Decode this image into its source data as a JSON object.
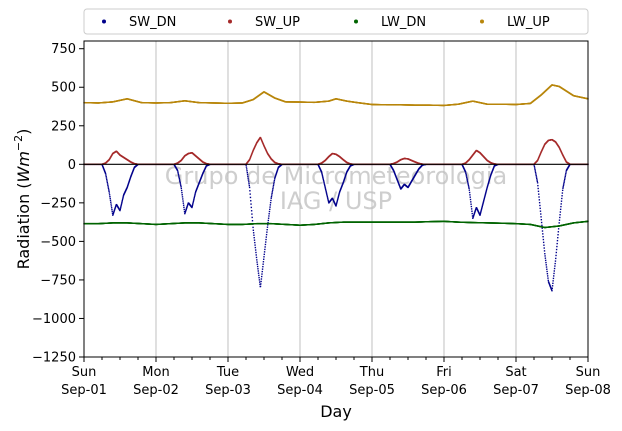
{
  "chart_data": {
    "type": "scatter",
    "title": "",
    "xlabel": "Day",
    "ylabel": "Radiation (Wm⁻²)",
    "ylabel_parts": {
      "prefix": "Radiation (",
      "math": "Wm",
      "sup": "−2",
      "suffix": ")"
    },
    "xlim": [
      0,
      7
    ],
    "ylim": [
      -1250,
      800
    ],
    "yticks": [
      -1250,
      -1000,
      -750,
      -500,
      -250,
      0,
      250,
      500,
      750
    ],
    "ytick_labels": [
      "−1250",
      "−1000",
      "−750",
      "−500",
      "−250",
      "0",
      "250",
      "500",
      "750"
    ],
    "xticks_major": [
      {
        "x": 0,
        "day": "Sun",
        "date": "Sep-01"
      },
      {
        "x": 1,
        "day": "Mon",
        "date": "Sep-02"
      },
      {
        "x": 2,
        "day": "Tue",
        "date": "Sep-03"
      },
      {
        "x": 3,
        "day": "Wed",
        "date": "Sep-04"
      },
      {
        "x": 4,
        "day": "Thu",
        "date": "Sep-05"
      },
      {
        "x": 5,
        "day": "Fri",
        "date": "Sep-06"
      },
      {
        "x": 6,
        "day": "Sat",
        "date": "Sep-07"
      },
      {
        "x": 7,
        "day": "Sun",
        "date": "Sep-08"
      }
    ],
    "grid": "vertical",
    "zero_line": 0,
    "legend": {
      "placement": "top, above plot",
      "columns": 4
    },
    "watermark": [
      "Grupo de Micrometeorologia",
      "IAG / USP"
    ],
    "series": [
      {
        "name": "SW_DN",
        "color": "#00008b",
        "x": [
          0,
          0.25,
          0.3,
          0.35,
          0.4,
          0.45,
          0.5,
          0.55,
          0.6,
          0.65,
          0.7,
          0.75,
          1,
          1.25,
          1.3,
          1.35,
          1.4,
          1.45,
          1.5,
          1.55,
          1.6,
          1.65,
          1.7,
          1.75,
          2,
          2.25,
          2.3,
          2.35,
          2.4,
          2.45,
          2.5,
          2.55,
          2.6,
          2.65,
          2.7,
          2.75,
          3,
          3.25,
          3.3,
          3.35,
          3.4,
          3.45,
          3.5,
          3.55,
          3.6,
          3.65,
          3.7,
          3.75,
          4,
          4.25,
          4.3,
          4.35,
          4.4,
          4.45,
          4.5,
          4.55,
          4.6,
          4.65,
          4.7,
          4.75,
          5,
          5.25,
          5.3,
          5.35,
          5.4,
          5.45,
          5.5,
          5.55,
          5.6,
          5.65,
          5.7,
          5.75,
          6,
          6.25,
          6.3,
          6.35,
          6.4,
          6.45,
          6.5,
          6.55,
          6.6,
          6.65,
          6.7,
          6.75,
          7
        ],
        "y": [
          0,
          0,
          -60,
          -180,
          -330,
          -260,
          -300,
          -200,
          -150,
          -80,
          -20,
          0,
          0,
          0,
          -40,
          -150,
          -320,
          -250,
          -280,
          -180,
          -120,
          -60,
          -10,
          0,
          0,
          0,
          -150,
          -420,
          -620,
          -800,
          -600,
          -400,
          -220,
          -90,
          -20,
          0,
          0,
          0,
          -50,
          -150,
          -250,
          -220,
          -270,
          -180,
          -120,
          -50,
          -10,
          0,
          0,
          0,
          -40,
          -100,
          -160,
          -130,
          -150,
          -110,
          -70,
          -30,
          -5,
          0,
          0,
          0,
          -50,
          -160,
          -350,
          -280,
          -330,
          -240,
          -150,
          -70,
          -10,
          0,
          0,
          0,
          -120,
          -350,
          -580,
          -760,
          -820,
          -620,
          -380,
          -160,
          -40,
          0,
          0
        ]
      },
      {
        "name": "SW_UP",
        "color": "#a52a2a",
        "x": [
          0,
          0.25,
          0.3,
          0.35,
          0.4,
          0.45,
          0.5,
          0.55,
          0.6,
          0.65,
          0.7,
          0.75,
          1,
          1.25,
          1.3,
          1.35,
          1.4,
          1.45,
          1.5,
          1.55,
          1.6,
          1.65,
          1.7,
          1.75,
          2,
          2.25,
          2.3,
          2.35,
          2.4,
          2.45,
          2.5,
          2.55,
          2.6,
          2.65,
          2.7,
          2.75,
          3,
          3.25,
          3.3,
          3.35,
          3.4,
          3.45,
          3.5,
          3.55,
          3.6,
          3.65,
          3.7,
          3.75,
          4,
          4.25,
          4.3,
          4.35,
          4.4,
          4.45,
          4.5,
          4.55,
          4.6,
          4.65,
          4.7,
          4.75,
          5,
          5.25,
          5.3,
          5.35,
          5.4,
          5.45,
          5.5,
          5.55,
          5.6,
          5.65,
          5.7,
          5.75,
          6,
          6.25,
          6.3,
          6.35,
          6.4,
          6.45,
          6.5,
          6.55,
          6.6,
          6.65,
          6.7,
          6.75,
          7
        ],
        "y": [
          0,
          0,
          8,
          30,
          70,
          85,
          60,
          45,
          30,
          15,
          4,
          0,
          0,
          0,
          8,
          25,
          55,
          70,
          75,
          55,
          35,
          15,
          4,
          0,
          0,
          0,
          30,
          90,
          140,
          175,
          120,
          70,
          35,
          12,
          3,
          0,
          0,
          0,
          8,
          25,
          50,
          70,
          65,
          50,
          30,
          12,
          2,
          0,
          0,
          0,
          5,
          15,
          30,
          38,
          35,
          25,
          15,
          6,
          1,
          0,
          0,
          0,
          8,
          30,
          60,
          90,
          75,
          50,
          25,
          10,
          2,
          0,
          0,
          0,
          25,
          80,
          130,
          155,
          160,
          145,
          110,
          60,
          15,
          0,
          0
        ]
      },
      {
        "name": "LW_DN",
        "color": "#006400",
        "x": [
          0,
          0.2,
          0.4,
          0.6,
          0.8,
          1,
          1.2,
          1.4,
          1.6,
          1.8,
          2,
          2.2,
          2.4,
          2.6,
          2.8,
          3,
          3.2,
          3.4,
          3.6,
          3.8,
          4,
          4.2,
          4.4,
          4.6,
          4.8,
          5,
          5.2,
          5.4,
          5.6,
          5.8,
          6,
          6.2,
          6.4,
          6.6,
          6.8,
          7
        ],
        "y": [
          -385,
          -385,
          -380,
          -380,
          -385,
          -390,
          -385,
          -380,
          -380,
          -385,
          -390,
          -390,
          -385,
          -385,
          -390,
          -395,
          -390,
          -380,
          -375,
          -375,
          -375,
          -375,
          -375,
          -375,
          -372,
          -370,
          -375,
          -378,
          -380,
          -382,
          -385,
          -390,
          -410,
          -400,
          -380,
          -370
        ]
      },
      {
        "name": "LW_UP",
        "color": "#b8860b",
        "x": [
          0,
          0.2,
          0.4,
          0.6,
          0.8,
          1,
          1.2,
          1.4,
          1.6,
          1.8,
          2,
          2.2,
          2.35,
          2.5,
          2.65,
          2.8,
          3,
          3.2,
          3.4,
          3.5,
          3.65,
          3.8,
          4,
          4.2,
          4.4,
          4.6,
          4.8,
          5,
          5.2,
          5.4,
          5.6,
          5.8,
          6,
          6.2,
          6.35,
          6.5,
          6.6,
          6.8,
          7
        ],
        "y": [
          400,
          398,
          405,
          425,
          400,
          398,
          400,
          412,
          400,
          398,
          396,
          398,
          420,
          470,
          430,
          405,
          404,
          402,
          410,
          425,
          410,
          400,
          388,
          386,
          386,
          384,
          384,
          382,
          390,
          410,
          390,
          390,
          388,
          395,
          450,
          515,
          505,
          445,
          425
        ]
      }
    ]
  }
}
